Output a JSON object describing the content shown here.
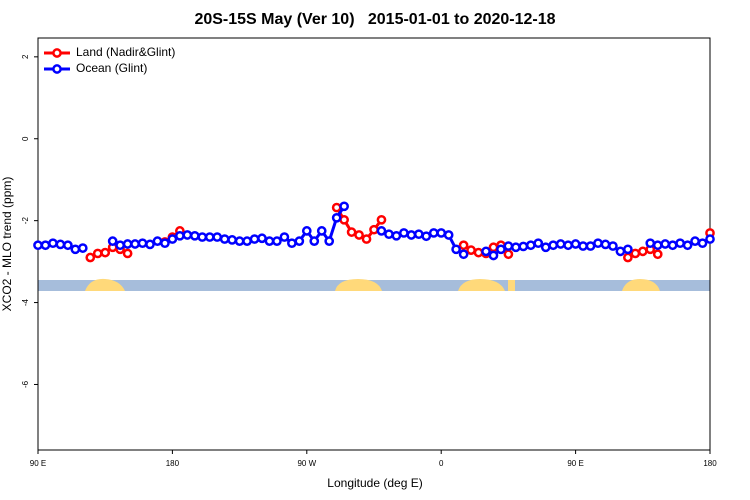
{
  "chart_data": {
    "type": "line",
    "title": "20S-15S May (Ver 10)   2015-01-01 to 2020-12-18",
    "xlabel": "Longitude (deg E)",
    "ylabel": "XCO2 - MLO trend (ppm)",
    "x": [
      90,
      95,
      100,
      105,
      110,
      115,
      120,
      125,
      130,
      135,
      140,
      145,
      150,
      155,
      160,
      165,
      170,
      175,
      180,
      185,
      190,
      195,
      200,
      205,
      210,
      215,
      220,
      225,
      230,
      235,
      240,
      245,
      250,
      255,
      260,
      265,
      270,
      275,
      280,
      285,
      290,
      295,
      300,
      305,
      310,
      315,
      320,
      325,
      330,
      335,
      340,
      345,
      350,
      355,
      360,
      365,
      370,
      375,
      380,
      385,
      390,
      395,
      400,
      405,
      410,
      415,
      420,
      425,
      430,
      435,
      440,
      445,
      450,
      455,
      460,
      465,
      470,
      475,
      480,
      485,
      490,
      495,
      500,
      505,
      510,
      515,
      520,
      525,
      530,
      535,
      540
    ],
    "series": [
      {
        "name": "Land (Nadir&Glint)",
        "color": "#ff0000",
        "values": [
          null,
          null,
          null,
          null,
          null,
          null,
          null,
          -2.9,
          -2.8,
          -2.78,
          -2.65,
          -2.7,
          -2.8,
          null,
          null,
          null,
          null,
          -2.52,
          -2.4,
          -2.25,
          null,
          null,
          null,
          null,
          null,
          null,
          null,
          null,
          null,
          null,
          null,
          null,
          null,
          null,
          null,
          null,
          null,
          null,
          null,
          null,
          -1.68,
          -1.98,
          -2.28,
          -2.35,
          -2.45,
          -2.22,
          -1.98,
          null,
          null,
          null,
          null,
          null,
          null,
          null,
          null,
          null,
          null,
          -2.6,
          -2.72,
          -2.78,
          -2.8,
          -2.65,
          -2.6,
          -2.82,
          null,
          null,
          null,
          null,
          null,
          null,
          null,
          null,
          null,
          null,
          null,
          null,
          null,
          null,
          null,
          -2.9,
          -2.8,
          -2.75,
          -2.7,
          -2.82,
          null,
          null,
          null,
          null,
          null,
          null,
          -2.3
        ]
      },
      {
        "name": "Ocean (Glint)",
        "color": "#0000ff",
        "values": [
          -2.6,
          -2.6,
          -2.55,
          -2.58,
          -2.6,
          -2.7,
          -2.67,
          null,
          null,
          null,
          -2.5,
          -2.6,
          -2.57,
          -2.57,
          -2.55,
          -2.58,
          -2.5,
          -2.55,
          -2.45,
          -2.37,
          -2.35,
          -2.37,
          -2.4,
          -2.4,
          -2.4,
          -2.45,
          -2.47,
          -2.5,
          -2.5,
          -2.45,
          -2.43,
          -2.5,
          -2.5,
          -2.4,
          -2.55,
          -2.5,
          -2.25,
          -2.5,
          -2.25,
          -2.5,
          -1.93,
          -1.65,
          null,
          null,
          null,
          null,
          -2.25,
          -2.33,
          -2.37,
          -2.3,
          -2.35,
          -2.33,
          -2.38,
          -2.3,
          -2.3,
          -2.35,
          -2.7,
          -2.82,
          null,
          null,
          -2.75,
          -2.85,
          -2.7,
          -2.62,
          -2.65,
          -2.63,
          -2.6,
          -2.55,
          -2.65,
          -2.6,
          -2.57,
          -2.6,
          -2.57,
          -2.62,
          -2.62,
          -2.55,
          -2.58,
          -2.62,
          -2.75,
          -2.7,
          null,
          null,
          -2.55,
          -2.6,
          -2.57,
          -2.6,
          -2.55,
          -2.6,
          -2.5,
          -2.55,
          -2.45
        ]
      }
    ],
    "xlim": [
      90,
      540
    ],
    "xticks": [
      {
        "value": 90,
        "label": "90 E"
      },
      180,
      {
        "value": 270,
        "label": "90 W"
      },
      {
        "value": 360,
        "label": "0"
      },
      {
        "value": 450,
        "label": "90 E"
      },
      {
        "value": 540,
        "label": "180"
      }
    ],
    "ylim": [
      -7.6,
      2.46
    ],
    "yticks": [
      -6,
      -4,
      -2,
      0,
      2
    ],
    "legend": "upper left"
  }
}
